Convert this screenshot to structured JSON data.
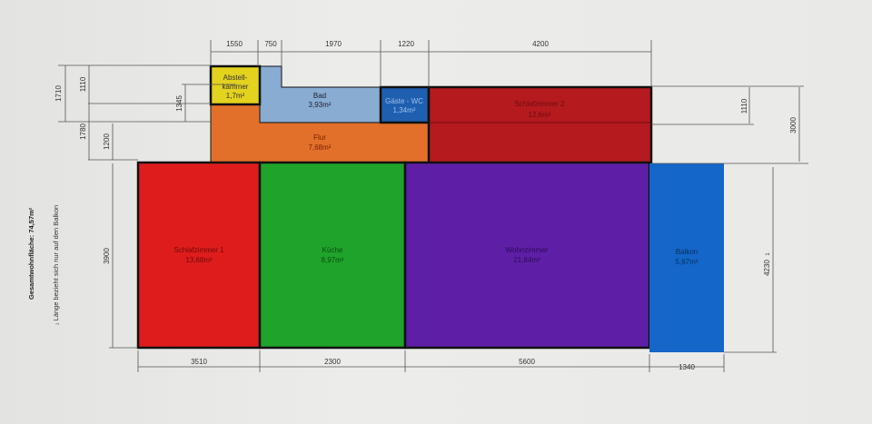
{
  "rooms": {
    "abstellkammer": {
      "name_1": "Abstell-",
      "name_2": "kammer",
      "area": "1,7m²",
      "color": "#e3d21e"
    },
    "bad": {
      "name": "Bad",
      "area": "3,93m²",
      "color": "#88acd2"
    },
    "gaeste_wc": {
      "name": "Gäste - WC",
      "area": "1,34m²",
      "color": "#1f5fb0"
    },
    "schlafzimmer_2": {
      "name": "Schlafzimmer 2",
      "area": "12,6m²",
      "color": "#b51a1e"
    },
    "flur": {
      "name": "Flur",
      "area": "7,68m²",
      "color": "#e2702a"
    },
    "schlafzimmer_1": {
      "name": "Schlafzimmer 1",
      "area": "13,68m²",
      "color": "#df1c1c"
    },
    "kueche": {
      "name": "Küche",
      "area": "8,97m²",
      "color": "#1fa32a"
    },
    "wohnzimmer": {
      "name": "Wohnzimmer",
      "area": "21,84m²",
      "color": "#5e1fa6"
    },
    "balkon": {
      "name": "Balkon",
      "area": "5,67m²",
      "color": "#1466c8"
    }
  },
  "dimensions": {
    "top": [
      "1550",
      "750",
      "1970",
      "1220",
      "4200"
    ],
    "bottom": [
      "3510",
      "2300",
      "5600",
      "1340"
    ],
    "left": [
      "1710",
      "1110",
      "1780",
      "1200",
      "1345",
      "3900"
    ],
    "right": [
      "1110",
      "3000",
      "4230"
    ],
    "right_footnote_mark": "1"
  },
  "notes": {
    "total_area": "Gesamtwohnfläche: 74,57m²",
    "footnote": "₁ Länge bezieht sich nur auf den Balkon"
  }
}
